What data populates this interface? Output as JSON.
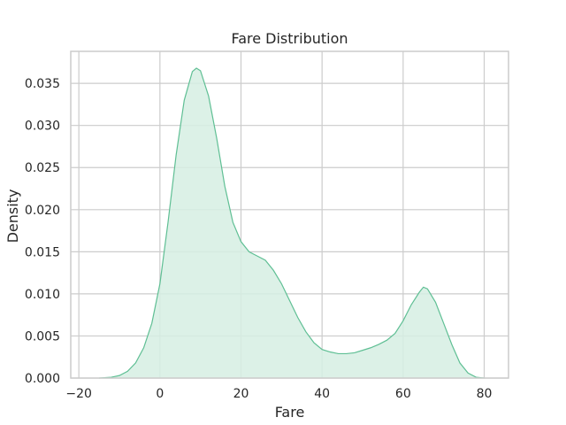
{
  "chart_data": {
    "type": "area",
    "title": "Fare Distribution",
    "xlabel": "Fare",
    "ylabel": "Density",
    "xlim": [
      -22,
      86
    ],
    "ylim": [
      0,
      0.0388
    ],
    "xticks": [
      -20,
      0,
      20,
      40,
      60,
      80
    ],
    "yticks": [
      0.0,
      0.005,
      0.01,
      0.015,
      0.02,
      0.025,
      0.03,
      0.035
    ],
    "xtick_labels": [
      "−20",
      "0",
      "20",
      "40",
      "60",
      "80"
    ],
    "ytick_labels": [
      "0.000",
      "0.005",
      "0.010",
      "0.015",
      "0.020",
      "0.025",
      "0.030",
      "0.035"
    ],
    "grid": true,
    "colors": {
      "line": "#5fbf94",
      "fill": "#d6eee3",
      "grid": "#cccccc",
      "spine": "#cccccc",
      "text": "#262626"
    },
    "series": [
      {
        "x": [
          -15,
          -12,
          -10,
          -8,
          -6,
          -4,
          -2,
          0,
          2,
          4,
          6,
          8,
          9,
          10,
          12,
          14,
          16,
          18,
          20,
          22,
          24,
          26,
          28,
          30,
          32,
          34,
          36,
          38,
          40,
          42,
          44,
          46,
          48,
          50,
          52,
          54,
          56,
          58,
          60,
          62,
          64,
          65,
          66,
          68,
          70,
          72,
          74,
          76,
          78,
          80
        ],
        "values": [
          0.0,
          0.0001,
          0.0003,
          0.0008,
          0.0018,
          0.0036,
          0.0065,
          0.0112,
          0.0185,
          0.0265,
          0.033,
          0.0364,
          0.0368,
          0.0365,
          0.0335,
          0.0285,
          0.0228,
          0.0185,
          0.0162,
          0.015,
          0.0145,
          0.014,
          0.0128,
          0.0112,
          0.0092,
          0.0072,
          0.0055,
          0.0042,
          0.0034,
          0.0031,
          0.0029,
          0.0029,
          0.003,
          0.0033,
          0.0036,
          0.004,
          0.0045,
          0.0053,
          0.0068,
          0.0087,
          0.0102,
          0.0108,
          0.0106,
          0.009,
          0.0065,
          0.004,
          0.0018,
          0.0006,
          0.0001,
          0.0
        ]
      }
    ]
  }
}
